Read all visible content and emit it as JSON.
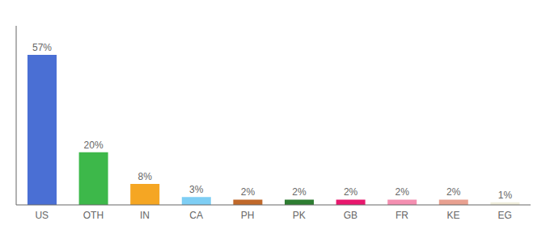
{
  "chart_data": {
    "type": "bar",
    "categories": [
      "US",
      "OTH",
      "IN",
      "CA",
      "PH",
      "PK",
      "GB",
      "FR",
      "KE",
      "EG"
    ],
    "values": [
      57,
      20,
      8,
      3,
      2,
      2,
      2,
      2,
      2,
      1
    ],
    "value_labels": [
      "57%",
      "20%",
      "8%",
      "3%",
      "2%",
      "2%",
      "2%",
      "2%",
      "2%",
      "1%"
    ],
    "colors": [
      "#4a6fd4",
      "#3db84a",
      "#f5a623",
      "#7ecef4",
      "#c0692a",
      "#2e7d32",
      "#e8186e",
      "#f48fb1",
      "#e8a090",
      "#f0eedc"
    ],
    "ylim": [
      0,
      68
    ],
    "data_labels": true,
    "tick_labels": "x"
  }
}
